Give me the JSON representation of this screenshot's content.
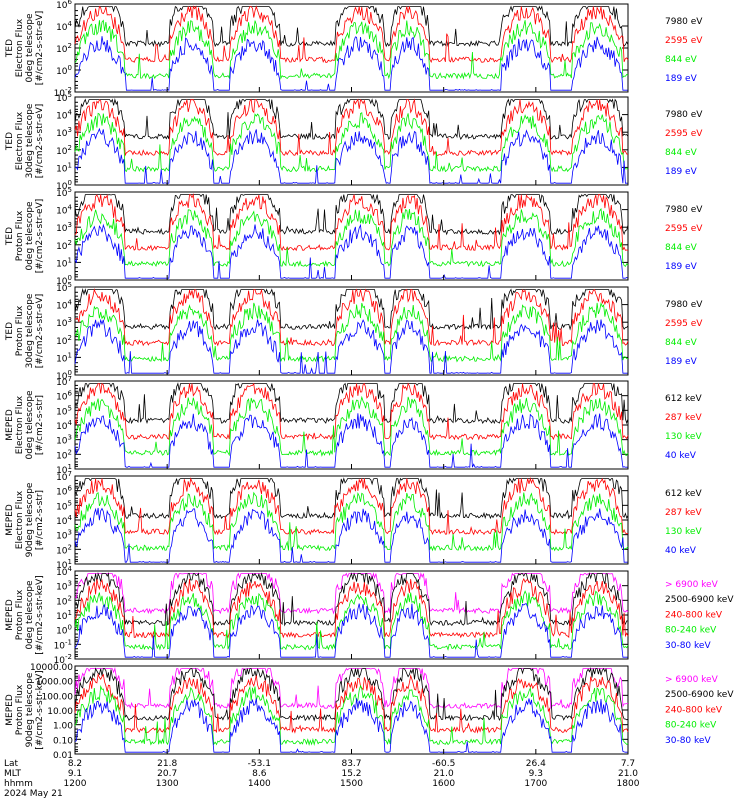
{
  "chart_data": [
    {
      "type": "line",
      "ylabel": [
        "TED",
        "Electron Flux",
        "0deg telescope",
        "[#/cm2-s-str-eV]"
      ],
      "yticks": [
        "10^6",
        "10^4",
        "10^2",
        "10^0",
        "10^-2"
      ],
      "ylim": [
        0.01,
        1000000
      ],
      "series": [
        {
          "name": "7980 eV",
          "color": "#000000"
        },
        {
          "name": "2595 eV",
          "color": "#ff0000"
        },
        {
          "name": "844 eV",
          "color": "#00ee00"
        },
        {
          "name": "189 eV",
          "color": "#0000ff"
        }
      ]
    },
    {
      "type": "line",
      "ylabel": [
        "TED",
        "Electron Flux",
        "30deg telescope",
        "[#/cm2-s-str-eV]"
      ],
      "yticks": [
        "10^5",
        "10^4",
        "10^3",
        "10^2",
        "10^1",
        "10^0"
      ],
      "ylim": [
        1,
        100000
      ],
      "series": [
        {
          "name": "7980 eV",
          "color": "#000000"
        },
        {
          "name": "2595 eV",
          "color": "#ff0000"
        },
        {
          "name": "844 eV",
          "color": "#00ee00"
        },
        {
          "name": "189 eV",
          "color": "#0000ff"
        }
      ]
    },
    {
      "type": "line",
      "ylabel": [
        "TED",
        "Proton Flux",
        "0deg telescope",
        "[#/cm2-s-str-eV]"
      ],
      "yticks": [
        "10^5",
        "10^4",
        "10^3",
        "10^2",
        "10^1",
        "10^0"
      ],
      "ylim": [
        1,
        100000
      ],
      "series": [
        {
          "name": "7980 eV",
          "color": "#000000"
        },
        {
          "name": "2595 eV",
          "color": "#ff0000"
        },
        {
          "name": "844 eV",
          "color": "#00ee00"
        },
        {
          "name": "189 eV",
          "color": "#0000ff"
        }
      ]
    },
    {
      "type": "line",
      "ylabel": [
        "TED",
        "Proton Flux",
        "30deg telescope",
        "[#/cm2-s-str-eV]"
      ],
      "yticks": [
        "10^5",
        "10^4",
        "10^3",
        "10^2",
        "10^1",
        "10^0"
      ],
      "ylim": [
        1,
        100000
      ],
      "series": [
        {
          "name": "7980 eV",
          "color": "#000000"
        },
        {
          "name": "2595 eV",
          "color": "#ff0000"
        },
        {
          "name": "844 eV",
          "color": "#00ee00"
        },
        {
          "name": "189 eV",
          "color": "#0000ff"
        }
      ]
    },
    {
      "type": "line",
      "ylabel": [
        "MEPED",
        "Electron Flux",
        "0deg telescope",
        "[#/cm2-s-str]"
      ],
      "yticks": [
        "10^7",
        "10^6",
        "10^5",
        "10^4",
        "10^3",
        "10^2",
        "10^1"
      ],
      "ylim": [
        10,
        10000000
      ],
      "series": [
        {
          "name": "612 keV",
          "color": "#000000"
        },
        {
          "name": "287 keV",
          "color": "#ff0000"
        },
        {
          "name": "130 keV",
          "color": "#00ee00"
        },
        {
          "name": "40 keV",
          "color": "#0000ff"
        }
      ]
    },
    {
      "type": "line",
      "ylabel": [
        "MEPED",
        "Electron Flux",
        "90deg telescope",
        "[#/cm2-s-str]"
      ],
      "yticks": [
        "10^7",
        "10^6",
        "10^5",
        "10^4",
        "10^3",
        "10^2",
        "10^1"
      ],
      "ylim": [
        10,
        10000000
      ],
      "series": [
        {
          "name": "612 keV",
          "color": "#000000"
        },
        {
          "name": "287 keV",
          "color": "#ff0000"
        },
        {
          "name": "130 keV",
          "color": "#00ee00"
        },
        {
          "name": "40 keV",
          "color": "#0000ff"
        }
      ]
    },
    {
      "type": "line",
      "ylabel": [
        "MEPED",
        "Proton Flux",
        "0deg telescope",
        "[#/cm2-s-str-keV]"
      ],
      "yticks": [
        "10^4",
        "10^3",
        "10^2",
        "10^1",
        "10^0",
        "10^-1",
        "10^-2"
      ],
      "ylim": [
        0.01,
        10000
      ],
      "series": [
        {
          "name": "> 6900 keV",
          "color": "#ff00ff"
        },
        {
          "name": "2500-6900 keV",
          "color": "#000000"
        },
        {
          "name": "240-800 keV",
          "color": "#ff0000"
        },
        {
          "name": "80-240 keV",
          "color": "#00ee00"
        },
        {
          "name": "30-80 keV",
          "color": "#0000ff"
        }
      ]
    },
    {
      "type": "line",
      "ylabel": [
        "MEPED",
        "Proton Flux",
        "90deg telescope",
        "[#/cm2-s-str-keV]"
      ],
      "yticks": [
        "10000.00",
        "1000.00",
        "100.00",
        "10.00",
        "1.00",
        "0.10",
        "0.01"
      ],
      "ylim": [
        0.01,
        10000
      ],
      "series": [
        {
          "name": "> 6900 keV",
          "color": "#ff00ff"
        },
        {
          "name": "2500-6900 keV",
          "color": "#000000"
        },
        {
          "name": "240-800 keV",
          "color": "#ff0000"
        },
        {
          "name": "80-240 keV",
          "color": "#00ee00"
        },
        {
          "name": "30-80 keV",
          "color": "#0000ff"
        }
      ]
    }
  ],
  "x_axis": {
    "row_labels": [
      "Lat",
      "MLT",
      "hhmm",
      "2024 May 21"
    ],
    "ticks": [
      {
        "lat": "8.2",
        "mlt": "9.1",
        "hhmm": "1200"
      },
      {
        "lat": "21.8",
        "mlt": "20.7",
        "hhmm": "1300"
      },
      {
        "lat": "-53.1",
        "mlt": "8.6",
        "hhmm": "1400"
      },
      {
        "lat": "83.7",
        "mlt": "15.2",
        "hhmm": "1500"
      },
      {
        "lat": "-60.5",
        "mlt": "21.0",
        "hhmm": "1600"
      },
      {
        "lat": "26.4",
        "mlt": "9.3",
        "hhmm": "1700"
      },
      {
        "lat": "7.7",
        "mlt": "21.0",
        "hhmm": "1800"
      }
    ],
    "xlim": [
      1200,
      1800
    ]
  }
}
